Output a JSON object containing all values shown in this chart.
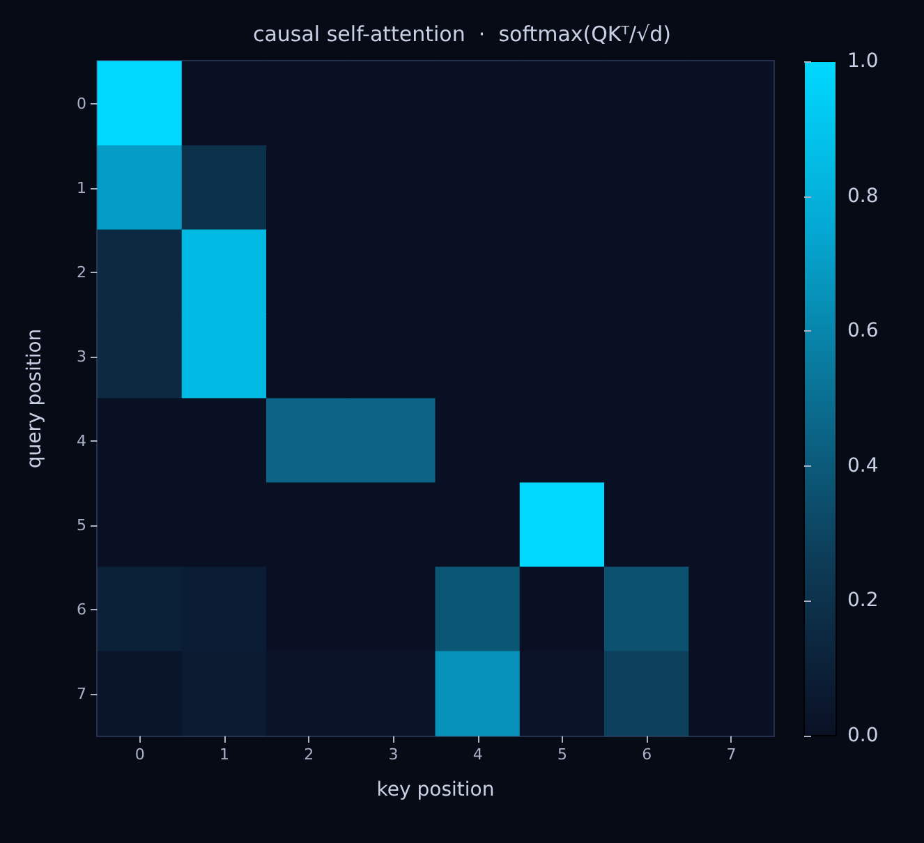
{
  "chart_data": {
    "type": "heatmap",
    "title": "causal self-attention  ·  softmax(QKᵀ/√d)",
    "xlabel": "key position",
    "ylabel": "query position",
    "clim": [
      0,
      1
    ],
    "cticks": [
      {
        "value": 0,
        "label": "0.0"
      },
      0.2,
      0.4,
      0.6,
      0.8,
      {
        "value": 1,
        "label": "1.0"
      }
    ],
    "categories": [
      "0",
      "1",
      "2",
      "3",
      "4",
      "5",
      "6",
      "7"
    ],
    "y_categories": [
      "0",
      "1",
      "2",
      "3",
      "4",
      "5",
      "6",
      "7"
    ],
    "cells": [
      [
        1,
        0,
        0,
        0,
        0,
        0,
        0,
        0
      ],
      [
        0.7,
        0.2,
        0,
        0,
        0,
        0,
        0,
        0
      ],
      [
        0.15,
        0.85,
        0,
        0,
        0,
        0,
        0,
        0
      ],
      [
        0.15,
        0.85,
        0,
        0,
        0,
        0,
        0,
        0
      ],
      [
        0,
        0,
        0.45,
        0.45,
        0,
        0,
        0,
        0
      ],
      [
        0,
        0,
        0,
        0,
        0,
        1,
        0,
        0
      ],
      [
        0.1,
        0.08,
        0,
        0,
        0.38,
        0,
        0.36,
        0
      ],
      [
        0.03,
        0.06,
        0.02,
        0.02,
        0.65,
        0.02,
        0.28,
        0
      ]
    ]
  }
}
